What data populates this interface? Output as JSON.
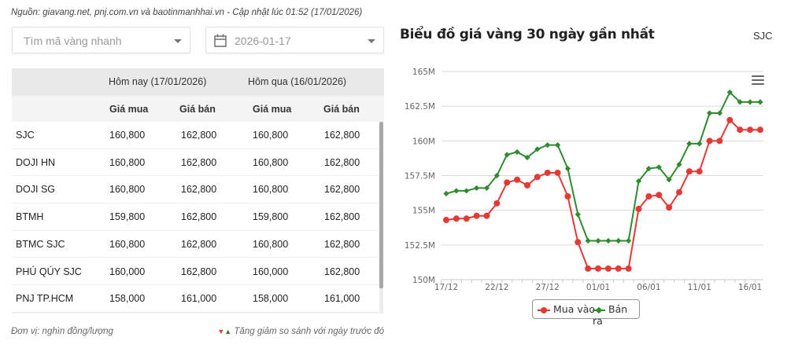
{
  "source_line": "Nguồn: giavang.net, pnj.com.vn và baotinmanhhai.vn - Cập nhật lúc 01:52 (17/01/2026)",
  "search": {
    "placeholder": "Tìm mã vàng nhanh"
  },
  "date_picker": {
    "value": "2026-01-17"
  },
  "table": {
    "group_headers": [
      "",
      "Hôm nay (17/01/2026)",
      "Hôm qua (16/01/2026)"
    ],
    "sub_headers": [
      "",
      "Giá mua",
      "Giá bán",
      "Giá mua",
      "Giá bán"
    ],
    "rows": [
      {
        "name": "SJC",
        "today_buy": "160,800",
        "today_sell": "162,800",
        "yesterday_buy": "160,800",
        "yesterday_sell": "162,800"
      },
      {
        "name": "DOJI HN",
        "today_buy": "160,800",
        "today_sell": "162,800",
        "yesterday_buy": "160,800",
        "yesterday_sell": "162,800"
      },
      {
        "name": "DOJI SG",
        "today_buy": "160,800",
        "today_sell": "162,800",
        "yesterday_buy": "160,800",
        "yesterday_sell": "162,800"
      },
      {
        "name": "BTMH",
        "today_buy": "159,800",
        "today_sell": "162,800",
        "yesterday_buy": "159,800",
        "yesterday_sell": "162,800"
      },
      {
        "name": "BTMC SJC",
        "today_buy": "160,800",
        "today_sell": "162,800",
        "yesterday_buy": "160,800",
        "yesterday_sell": "162,800"
      },
      {
        "name": "PHÚ QÚY SJC",
        "today_buy": "160,000",
        "today_sell": "162,800",
        "yesterday_buy": "160,000",
        "yesterday_sell": "162,800"
      },
      {
        "name": "PNJ TP.HCM",
        "today_buy": "158,000",
        "today_sell": "161,000",
        "yesterday_buy": "158,000",
        "yesterday_sell": "161,000"
      }
    ]
  },
  "footer": {
    "unit": "Đơn vị: nghìn đồng/lượng",
    "compare_note": "Tăng giảm so sánh với ngày trước đó",
    "down_arrow": "▼",
    "up_arrow": "▲"
  },
  "chart_header": {
    "title": "Biểu đồ giá vàng 30 ngày gần nhất",
    "code": "SJC"
  },
  "colors": {
    "buy": "#e53935",
    "sell": "#2e8b2e",
    "grid": "#d9d9d9",
    "axis_text": "#666666"
  },
  "chart_data": {
    "type": "line",
    "title": "Biểu đồ giá vàng 30 ngày gần nhất",
    "subtitle": "SJC",
    "xlabel": "",
    "ylabel": "",
    "ylim": [
      150,
      165
    ],
    "y_unit": "M",
    "yticks": [
      150,
      152.5,
      155,
      157.5,
      160,
      162.5,
      165
    ],
    "ytick_labels": [
      "150M",
      "152.5M",
      "155M",
      "157.5M",
      "160M",
      "162.5M",
      "165M"
    ],
    "grid": true,
    "legend_position": "bottom",
    "x": [
      "17/12",
      "18/12",
      "19/12",
      "20/12",
      "21/12",
      "22/12",
      "23/12",
      "24/12",
      "25/12",
      "26/12",
      "27/12",
      "28/12",
      "29/12",
      "30/12",
      "31/12",
      "01/01",
      "02/01",
      "03/01",
      "04/01",
      "05/01",
      "06/01",
      "07/01",
      "08/01",
      "09/01",
      "10/01",
      "11/01",
      "12/01",
      "13/01",
      "14/01",
      "15/01",
      "16/01",
      "17/01"
    ],
    "xtick_labels": [
      "17/12",
      "22/12",
      "27/12",
      "01/01",
      "06/01",
      "11/01",
      "16/01"
    ],
    "series": [
      {
        "name": "Mua vào",
        "color": "#e53935",
        "marker": "circle",
        "values": [
          154.3,
          154.4,
          154.4,
          154.6,
          154.6,
          155.5,
          157.0,
          157.2,
          156.8,
          157.4,
          157.7,
          157.7,
          156.0,
          152.7,
          150.8,
          150.8,
          150.8,
          150.8,
          150.8,
          155.1,
          156.0,
          156.1,
          155.2,
          156.3,
          157.8,
          157.8,
          160.0,
          160.0,
          161.5,
          160.8,
          160.8,
          160.8
        ]
      },
      {
        "name": "Bán ra",
        "color": "#2e8b2e",
        "marker": "diamond",
        "values": [
          156.2,
          156.4,
          156.4,
          156.6,
          156.6,
          157.5,
          159.0,
          159.2,
          158.8,
          159.4,
          159.7,
          159.7,
          158.0,
          154.7,
          152.8,
          152.8,
          152.8,
          152.8,
          152.8,
          157.1,
          158.0,
          158.1,
          157.2,
          158.3,
          159.8,
          159.8,
          162.0,
          162.0,
          163.5,
          162.8,
          162.8,
          162.8
        ]
      }
    ]
  }
}
